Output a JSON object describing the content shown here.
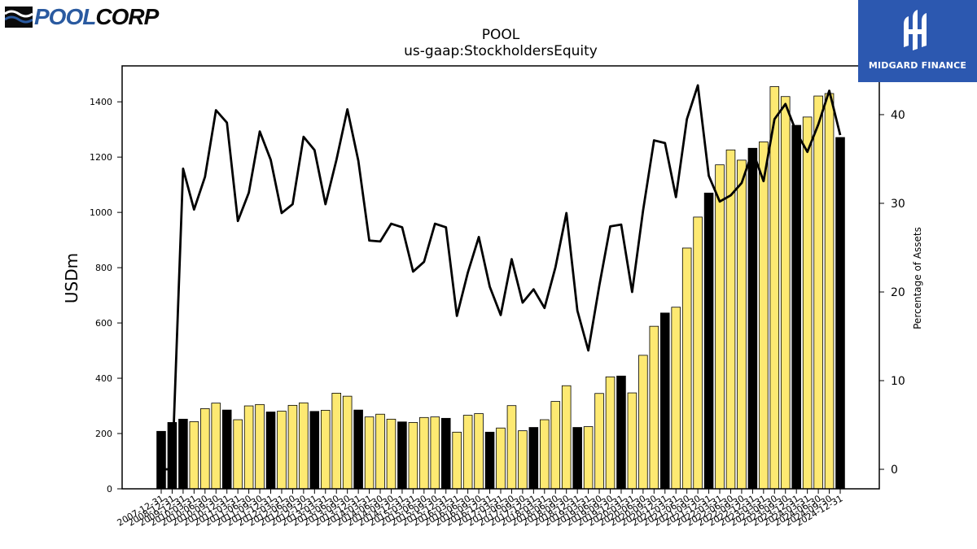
{
  "logos": {
    "left_part1": "POOL",
    "left_part2": "CORP",
    "right": "MIDGARD FINANCE"
  },
  "chart_data": {
    "type": "bar",
    "title": "POOL",
    "subtitle": "us-gaap:StockholdersEquity",
    "ylabel": "USDm",
    "y2label": "Percentage of Assets",
    "ylim": [
      0,
      1530
    ],
    "y2lim": [
      -2.2,
      45.5
    ],
    "yticks": [
      0,
      200,
      400,
      600,
      800,
      1000,
      1200,
      1400
    ],
    "y2ticks": [
      0,
      10,
      20,
      30,
      40
    ],
    "colors": {
      "annual_bar": "#000000",
      "quarter_bar": "#fde972",
      "bar_edge": "#000000",
      "line": "#000000"
    },
    "categories": [
      "2007-12-31",
      "2008-12-31",
      "2009-12-31",
      "2010-03-31",
      "2010-06-30",
      "2010-09-30",
      "2010-12-31",
      "2011-03-31",
      "2011-06-30",
      "2011-09-30",
      "2011-12-31",
      "2012-03-31",
      "2012-06-30",
      "2012-09-30",
      "2012-12-31",
      "2013-03-31",
      "2013-06-30",
      "2013-09-30",
      "2013-12-31",
      "2014-03-31",
      "2014-06-30",
      "2014-09-30",
      "2014-12-31",
      "2015-03-31",
      "2015-06-30",
      "2015-09-30",
      "2015-12-31",
      "2016-03-31",
      "2016-06-30",
      "2016-09-30",
      "2016-12-31",
      "2017-03-31",
      "2017-06-30",
      "2017-09-30",
      "2017-12-31",
      "2018-03-31",
      "2018-06-30",
      "2018-09-30",
      "2018-12-31",
      "2019-03-31",
      "2019-06-30",
      "2019-09-30",
      "2019-12-31",
      "2020-03-31",
      "2020-06-30",
      "2020-09-30",
      "2020-12-31",
      "2021-03-31",
      "2021-06-30",
      "2021-09-30",
      "2021-12-31",
      "2022-03-31",
      "2022-06-30",
      "2022-09-30",
      "2022-12-31",
      "2023-03-31",
      "2023-06-30",
      "2023-09-30",
      "2023-12-31",
      "2024-03-31",
      "2024-06-30",
      "2024-09-30",
      "2024-12-31"
    ],
    "series": [
      {
        "name": "StockholdersEquity",
        "values": [
          208,
          240,
          252,
          243,
          290,
          310,
          285,
          250,
          300,
          305,
          278,
          281,
          302,
          311,
          280,
          284,
          346,
          335,
          285,
          260,
          270,
          252,
          242,
          240,
          258,
          260,
          255,
          205,
          266,
          272,
          205,
          220,
          301,
          210,
          222,
          250,
          316,
          373,
          222,
          225,
          345,
          405,
          408,
          347,
          483,
          588,
          636,
          657,
          871,
          983,
          1070,
          1172,
          1226,
          1189,
          1232,
          1255,
          1455,
          1419,
          1315,
          1345,
          1421,
          1430,
          1271
        ],
        "annual": [
          true,
          true,
          true,
          false,
          false,
          false,
          true,
          false,
          false,
          false,
          true,
          false,
          false,
          false,
          true,
          false,
          false,
          false,
          true,
          false,
          false,
          false,
          true,
          false,
          false,
          false,
          true,
          false,
          false,
          false,
          true,
          false,
          false,
          false,
          true,
          false,
          false,
          false,
          true,
          false,
          false,
          false,
          true,
          false,
          false,
          false,
          true,
          false,
          false,
          false,
          true,
          false,
          false,
          false,
          true,
          false,
          false,
          false,
          true,
          false,
          false,
          false,
          true
        ]
      },
      {
        "name": "Percentage of Assets",
        "axis": "right",
        "values": [
          0,
          0,
          33.9,
          29.3,
          33.0,
          40.5,
          39.1,
          28.0,
          31.2,
          38.1,
          34.9,
          28.9,
          29.9,
          37.5,
          36.0,
          29.9,
          34.9,
          40.6,
          34.8,
          25.8,
          25.7,
          27.7,
          27.3,
          22.3,
          23.4,
          27.7,
          27.3,
          17.3,
          22.2,
          26.2,
          20.6,
          17.4,
          23.7,
          18.8,
          20.3,
          18.2,
          22.8,
          28.9,
          17.9,
          13.4,
          20.7,
          27.4,
          27.6,
          20.0,
          29.2,
          37.1,
          36.8,
          30.7,
          39.5,
          43.3,
          33.1,
          30.2,
          30.9,
          32.3,
          35.9,
          32.5,
          39.5,
          41.2,
          38.0,
          35.8,
          38.9,
          42.7,
          37.7
        ]
      }
    ],
    "grid": false
  }
}
